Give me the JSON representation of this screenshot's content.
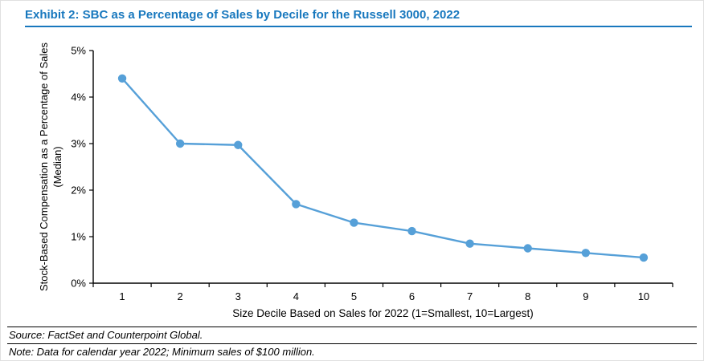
{
  "header": {
    "title": "Exhibit 2: SBC as a Percentage of Sales by Decile for the Russell 3000, 2022",
    "accent_color": "#1878BE"
  },
  "chart_data": {
    "type": "line",
    "categories": [
      "1",
      "2",
      "3",
      "4",
      "5",
      "6",
      "7",
      "8",
      "9",
      "10"
    ],
    "values": [
      4.4,
      3.0,
      2.97,
      1.7,
      1.3,
      1.12,
      0.85,
      0.75,
      0.65,
      0.55
    ],
    "title": "",
    "xlabel": "Size Decile Based on Sales for 2022 (1=Smallest, 10=Largest)",
    "ylabel": "Stock-Based Compensation as a Percentage of Sales (Median)",
    "ylim": [
      0,
      5
    ],
    "ytick_step": 1,
    "ytick_suffix": "%",
    "grid": false,
    "legend": "none",
    "line_color": "#56A0D8",
    "marker": "circle",
    "axis_color": "#000000"
  },
  "footer": {
    "source": "Source: FactSet and Counterpoint Global.",
    "note": "Note: Data for calendar year 2022; Minimum sales of $100 million."
  }
}
